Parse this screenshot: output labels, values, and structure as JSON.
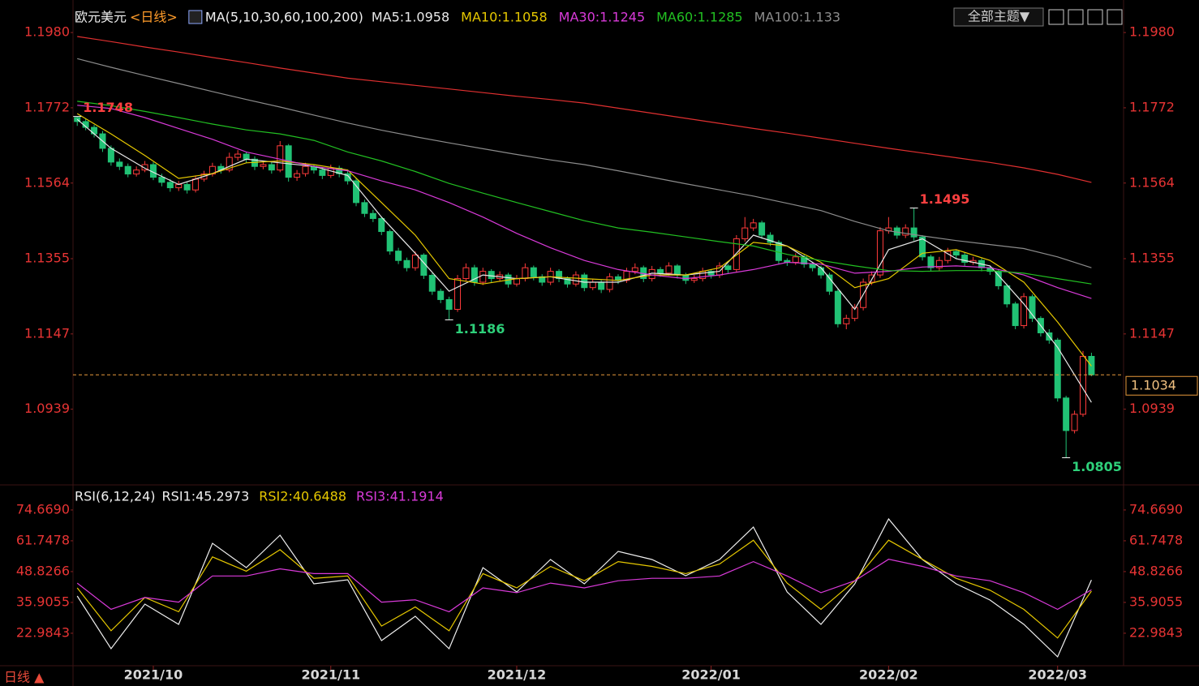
{
  "ui": {
    "theme_button": "全部主题▼",
    "period_tab": "日线 ▲"
  },
  "chart_data": [
    {
      "type": "candlestick",
      "title": "欧元美元",
      "subtitle": "<日线>",
      "indicator": "MA(5,10,30,60,100,200)",
      "up_color": "#ff3b3b",
      "down_color": "#21c275",
      "xlim": [
        -0.5,
        123.8
      ],
      "xticks": [
        {
          "value": 9,
          "label": "2021/10"
        },
        {
          "value": 30,
          "label": "2021/11"
        },
        {
          "value": 52,
          "label": "2021/12"
        },
        {
          "value": 75,
          "label": "2022/01"
        },
        {
          "value": 96,
          "label": "2022/02"
        },
        {
          "value": 116,
          "label": "2022/03"
        }
      ],
      "ylim": [
        1.0732,
        1.2052
      ],
      "yticks": [
        {
          "value": 1.198,
          "label": "1.1980"
        },
        1.1772,
        1.1564,
        1.1355,
        1.1147,
        1.0939
      ],
      "candles": [
        [
          1.1745,
          1.1748,
          1.1722,
          1.1734
        ],
        [
          1.1734,
          1.1742,
          1.171,
          1.1718
        ],
        [
          1.1718,
          1.1725,
          1.169,
          1.17
        ],
        [
          1.17,
          1.1708,
          1.165,
          1.166
        ],
        [
          1.166,
          1.1668,
          1.1612,
          1.1622
        ],
        [
          1.1622,
          1.1632,
          1.16,
          1.161
        ],
        [
          1.161,
          1.1618,
          1.158,
          1.1589
        ],
        [
          1.1589,
          1.161,
          1.1582,
          1.16
        ],
        [
          1.16,
          1.1625,
          1.1594,
          1.1615
        ],
        [
          1.1615,
          1.1622,
          1.1572,
          1.158
        ],
        [
          1.158,
          1.159,
          1.1555,
          1.1566
        ],
        [
          1.1566,
          1.1575,
          1.154,
          1.1551
        ],
        [
          1.1551,
          1.157,
          1.1542,
          1.156
        ],
        [
          1.156,
          1.1566,
          1.1535,
          1.1545
        ],
        [
          1.1545,
          1.1585,
          1.1538,
          1.1575
        ],
        [
          1.1575,
          1.1598,
          1.1568,
          1.1589
        ],
        [
          1.1589,
          1.162,
          1.1582,
          1.161
        ],
        [
          1.161,
          1.1618,
          1.159,
          1.16
        ],
        [
          1.16,
          1.1648,
          1.1594,
          1.1635
        ],
        [
          1.1635,
          1.1655,
          1.1626,
          1.1644
        ],
        [
          1.1644,
          1.165,
          1.162,
          1.163
        ],
        [
          1.163,
          1.1638,
          1.16,
          1.161
        ],
        [
          1.161,
          1.1625,
          1.1602,
          1.1615
        ],
        [
          1.1615,
          1.1622,
          1.159,
          1.16
        ],
        [
          1.16,
          1.168,
          1.1594,
          1.1667
        ],
        [
          1.1667,
          1.1672,
          1.1568,
          1.158
        ],
        [
          1.158,
          1.16,
          1.157,
          1.159
        ],
        [
          1.159,
          1.162,
          1.1582,
          1.161
        ],
        [
          1.161,
          1.1616,
          1.159,
          1.16
        ],
        [
          1.16,
          1.1608,
          1.1575,
          1.1585
        ],
        [
          1.1585,
          1.1615,
          1.1578,
          1.1605
        ],
        [
          1.1605,
          1.1612,
          1.158,
          1.159
        ],
        [
          1.159,
          1.1598,
          1.156,
          1.157
        ],
        [
          1.157,
          1.1578,
          1.15,
          1.151
        ],
        [
          1.151,
          1.1518,
          1.147,
          1.148
        ],
        [
          1.148,
          1.149,
          1.1456,
          1.1466
        ],
        [
          1.1466,
          1.1472,
          1.142,
          1.143
        ],
        [
          1.143,
          1.1436,
          1.1366,
          1.1376
        ],
        [
          1.1376,
          1.1385,
          1.134,
          1.135
        ],
        [
          1.135,
          1.1358,
          1.132,
          1.133
        ],
        [
          1.133,
          1.1375,
          1.1322,
          1.1365
        ],
        [
          1.1365,
          1.137,
          1.1299,
          1.1309
        ],
        [
          1.1309,
          1.1315,
          1.1255,
          1.1265
        ],
        [
          1.1265,
          1.1272,
          1.1232,
          1.1242
        ],
        [
          1.1242,
          1.125,
          1.1186,
          1.1215
        ],
        [
          1.1215,
          1.131,
          1.1208,
          1.13
        ],
        [
          1.13,
          1.1342,
          1.1292,
          1.133
        ],
        [
          1.133,
          1.1338,
          1.128,
          1.129
        ],
        [
          1.129,
          1.133,
          1.1282,
          1.132
        ],
        [
          1.132,
          1.1326,
          1.129,
          1.13
        ],
        [
          1.13,
          1.132,
          1.1292,
          1.131
        ],
        [
          1.131,
          1.1316,
          1.1275,
          1.1285
        ],
        [
          1.1285,
          1.131,
          1.1278,
          1.13
        ],
        [
          1.13,
          1.1342,
          1.1292,
          1.133
        ],
        [
          1.133,
          1.1336,
          1.1295,
          1.1305
        ],
        [
          1.1305,
          1.1312,
          1.128,
          1.129
        ],
        [
          1.129,
          1.133,
          1.1282,
          1.132
        ],
        [
          1.132,
          1.1326,
          1.129,
          1.13
        ],
        [
          1.13,
          1.1306,
          1.1275,
          1.1285
        ],
        [
          1.1285,
          1.132,
          1.1278,
          1.131
        ],
        [
          1.131,
          1.1316,
          1.1265,
          1.1275
        ],
        [
          1.1275,
          1.13,
          1.1268,
          1.129
        ],
        [
          1.129,
          1.1296,
          1.126,
          1.127
        ],
        [
          1.127,
          1.1315,
          1.1262,
          1.1305
        ],
        [
          1.1305,
          1.1312,
          1.1285,
          1.1295
        ],
        [
          1.1295,
          1.133,
          1.1288,
          1.132
        ],
        [
          1.132,
          1.1342,
          1.1312,
          1.133
        ],
        [
          1.133,
          1.1336,
          1.129,
          1.13
        ],
        [
          1.13,
          1.1335,
          1.1292,
          1.1325
        ],
        [
          1.1325,
          1.1332,
          1.1305,
          1.1315
        ],
        [
          1.1315,
          1.1345,
          1.1308,
          1.1335
        ],
        [
          1.1335,
          1.134,
          1.13,
          1.131
        ],
        [
          1.131,
          1.1316,
          1.1285,
          1.1295
        ],
        [
          1.1295,
          1.131,
          1.1288,
          1.13
        ],
        [
          1.13,
          1.133,
          1.1292,
          1.132
        ],
        [
          1.132,
          1.1326,
          1.13,
          1.131
        ],
        [
          1.131,
          1.1345,
          1.1302,
          1.1335
        ],
        [
          1.1335,
          1.134,
          1.1315,
          1.1325
        ],
        [
          1.1325,
          1.142,
          1.1318,
          1.141
        ],
        [
          1.141,
          1.147,
          1.1402,
          1.144
        ],
        [
          1.144,
          1.1465,
          1.1432,
          1.1454
        ],
        [
          1.1454,
          1.146,
          1.141,
          1.142
        ],
        [
          1.142,
          1.1428,
          1.139,
          1.14
        ],
        [
          1.14,
          1.1406,
          1.134,
          1.135
        ],
        [
          1.135,
          1.1356,
          1.1335,
          1.1345
        ],
        [
          1.1345,
          1.137,
          1.1338,
          1.136
        ],
        [
          1.136,
          1.1366,
          1.133,
          1.134
        ],
        [
          1.134,
          1.1346,
          1.132,
          1.133
        ],
        [
          1.133,
          1.1336,
          1.13,
          1.131
        ],
        [
          1.131,
          1.1316,
          1.1255,
          1.1265
        ],
        [
          1.1265,
          1.1272,
          1.1165,
          1.1175
        ],
        [
          1.1175,
          1.12,
          1.116,
          1.119
        ],
        [
          1.119,
          1.123,
          1.1182,
          1.122
        ],
        [
          1.122,
          1.13,
          1.1212,
          1.129
        ],
        [
          1.129,
          1.132,
          1.1282,
          1.131
        ],
        [
          1.131,
          1.1442,
          1.1302,
          1.1432
        ],
        [
          1.1432,
          1.147,
          1.1424,
          1.144
        ],
        [
          1.144,
          1.1446,
          1.141,
          1.142
        ],
        [
          1.142,
          1.145,
          1.1412,
          1.144
        ],
        [
          1.144,
          1.1495,
          1.1405,
          1.1415
        ],
        [
          1.1415,
          1.142,
          1.135,
          1.136
        ],
        [
          1.136,
          1.1366,
          1.132,
          1.133
        ],
        [
          1.133,
          1.136,
          1.1322,
          1.135
        ],
        [
          1.135,
          1.1385,
          1.1342,
          1.1375
        ],
        [
          1.1375,
          1.138,
          1.1355,
          1.1365
        ],
        [
          1.1365,
          1.1372,
          1.1335,
          1.1345
        ],
        [
          1.1345,
          1.136,
          1.1338,
          1.135
        ],
        [
          1.135,
          1.1356,
          1.132,
          1.133
        ],
        [
          1.133,
          1.1336,
          1.131,
          1.132
        ],
        [
          1.132,
          1.1326,
          1.127,
          1.128
        ],
        [
          1.128,
          1.1286,
          1.122,
          1.123
        ],
        [
          1.123,
          1.1236,
          1.116,
          1.117
        ],
        [
          1.117,
          1.126,
          1.1162,
          1.125
        ],
        [
          1.125,
          1.1256,
          1.118,
          1.119
        ],
        [
          1.119,
          1.1196,
          1.114,
          1.115
        ],
        [
          1.115,
          1.116,
          1.112,
          1.113
        ],
        [
          1.113,
          1.1136,
          1.096,
          1.097
        ],
        [
          1.097,
          1.0976,
          1.0805,
          1.088
        ],
        [
          1.088,
          1.0935,
          1.0872,
          1.0925
        ],
        [
          1.0925,
          1.11,
          1.0918,
          1.1085
        ],
        [
          1.1085,
          1.1095,
          1.103,
          1.1034
        ]
      ],
      "ma_x": [
        0,
        4,
        8,
        12,
        16,
        20,
        24,
        28,
        32,
        36,
        40,
        44,
        48,
        52,
        56,
        60,
        64,
        68,
        72,
        76,
        80,
        84,
        88,
        92,
        96,
        100,
        104,
        108,
        112,
        116,
        120
      ],
      "series": [
        {
          "name": "MA5:1.0958",
          "color": "#e8e8e8",
          "values": [
            1.174,
            1.166,
            1.1605,
            1.156,
            1.159,
            1.163,
            1.162,
            1.161,
            1.1585,
            1.147,
            1.137,
            1.1265,
            1.131,
            1.13,
            1.1305,
            1.129,
            1.129,
            1.1315,
            1.131,
            1.132,
            1.142,
            1.139,
            1.133,
            1.1215,
            1.138,
            1.141,
            1.1355,
            1.1335,
            1.123,
            1.111,
            1.0958
          ]
        },
        {
          "name": "MA10:1.1058",
          "color": "#e6c800",
          "values": [
            1.1756,
            1.17,
            1.164,
            1.1577,
            1.159,
            1.162,
            1.1625,
            1.1615,
            1.16,
            1.151,
            1.142,
            1.13,
            1.1285,
            1.13,
            1.1305,
            1.13,
            1.1295,
            1.131,
            1.131,
            1.133,
            1.14,
            1.139,
            1.1345,
            1.1275,
            1.13,
            1.137,
            1.138,
            1.135,
            1.129,
            1.118,
            1.1058
          ]
        },
        {
          "name": "MA30:1.1245",
          "color": "#d93ad9",
          "values": [
            1.1779,
            1.177,
            1.1745,
            1.1715,
            1.1685,
            1.165,
            1.163,
            1.161,
            1.1598,
            1.157,
            1.1545,
            1.151,
            1.147,
            1.1425,
            1.1385,
            1.135,
            1.1325,
            1.131,
            1.13,
            1.131,
            1.1325,
            1.1345,
            1.134,
            1.1315,
            1.132,
            1.1332,
            1.1335,
            1.133,
            1.131,
            1.1275,
            1.1245
          ]
        },
        {
          "name": "MA60:1.1285",
          "color": "#22c022",
          "values": [
            1.179,
            1.1778,
            1.1762,
            1.1745,
            1.1727,
            1.1711,
            1.17,
            1.1682,
            1.165,
            1.1625,
            1.1596,
            1.1563,
            1.1536,
            1.151,
            1.1485,
            1.146,
            1.144,
            1.1428,
            1.1415,
            1.1402,
            1.139,
            1.1367,
            1.135,
            1.1335,
            1.1322,
            1.132,
            1.1322,
            1.1322,
            1.1315,
            1.13,
            1.1285
          ]
        },
        {
          "name": "MA100:1.133",
          "color": "#8c8c8c",
          "values": [
            1.1908,
            1.1884,
            1.1861,
            1.1839,
            1.1817,
            1.1795,
            1.1774,
            1.1752,
            1.173,
            1.171,
            1.1692,
            1.1675,
            1.1659,
            1.1643,
            1.1628,
            1.1615,
            1.1598,
            1.158,
            1.1562,
            1.1545,
            1.1528,
            1.1508,
            1.1488,
            1.1458,
            1.1432,
            1.1418,
            1.1405,
            1.1394,
            1.1383,
            1.136,
            1.133
          ]
        },
        {
          "color": "#e03030",
          "values": [
            1.1969,
            1.1955,
            1.194,
            1.1926,
            1.1911,
            1.1897,
            1.1882,
            1.1868,
            1.1854,
            1.1844,
            1.1834,
            1.1824,
            1.1814,
            1.1804,
            1.1795,
            1.1785,
            1.1771,
            1.1757,
            1.1743,
            1.1729,
            1.1715,
            1.1702,
            1.1688,
            1.1674,
            1.166,
            1.1647,
            1.1634,
            1.1621,
            1.1606,
            1.1588,
            1.1566
          ]
        }
      ],
      "annotations": [
        {
          "x": 0,
          "value": 1.1748,
          "color": "#ff4040",
          "kind": "high"
        },
        {
          "x": 99,
          "value": 1.1495,
          "color": "#ff4040",
          "kind": "high"
        },
        {
          "x": 44,
          "value": 1.1186,
          "color": "#2ed07a",
          "kind": "low"
        },
        {
          "x": 117,
          "value": 1.0805,
          "color": "#2ed07a",
          "kind": "low"
        }
      ],
      "last_price": 1.1034,
      "last_price_color": "#e89a3c"
    },
    {
      "type": "line",
      "indicator": "RSI(6,12,24)",
      "x": [
        0,
        4,
        8,
        12,
        16,
        20,
        24,
        28,
        32,
        36,
        40,
        44,
        48,
        52,
        56,
        60,
        64,
        68,
        72,
        76,
        80,
        84,
        88,
        92,
        96,
        100,
        104,
        108,
        112,
        116,
        120
      ],
      "xlim": [
        -0.5,
        123.8
      ],
      "ylim": [
        9.7,
        84.5
      ],
      "yticks": [
        {
          "value": 74.669,
          "label": "74.6690"
        },
        61.7478,
        48.8266,
        35.9055,
        22.9843
      ],
      "series": [
        {
          "name": "RSI1:45.2973",
          "color": "#f0f0f0",
          "values": [
            38.6,
            16.5,
            35.2,
            26.7,
            60.7,
            50.5,
            64.1,
            43.7,
            45.4,
            19.9,
            30.1,
            16.5,
            50.5,
            40.3,
            53.9,
            43.7,
            57.3,
            53.9,
            47.1,
            53.9,
            67.5,
            40.3,
            26.7,
            43.7,
            70.9,
            53.9,
            43.7,
            36.9,
            26.7,
            13.1,
            45.2973
          ]
        },
        {
          "name": "RSI2:40.6488",
          "color": "#e6c800",
          "values": [
            42,
            24,
            38,
            32,
            55,
            49,
            58,
            46,
            47,
            26,
            34,
            24,
            48,
            42,
            51,
            45,
            53,
            51,
            48,
            52,
            62,
            44,
            33,
            45,
            62,
            54,
            46,
            41,
            33,
            21,
            40.6488
          ]
        },
        {
          "name": "RSI3:41.1914",
          "color": "#d93ad9",
          "values": [
            44,
            33,
            38,
            36,
            47,
            47,
            50,
            48,
            48,
            36,
            37,
            32,
            42,
            40,
            44,
            42,
            45,
            46,
            46,
            47,
            53,
            47,
            40,
            45,
            54,
            51,
            47,
            45,
            40,
            33,
            41.1914
          ]
        }
      ]
    }
  ]
}
